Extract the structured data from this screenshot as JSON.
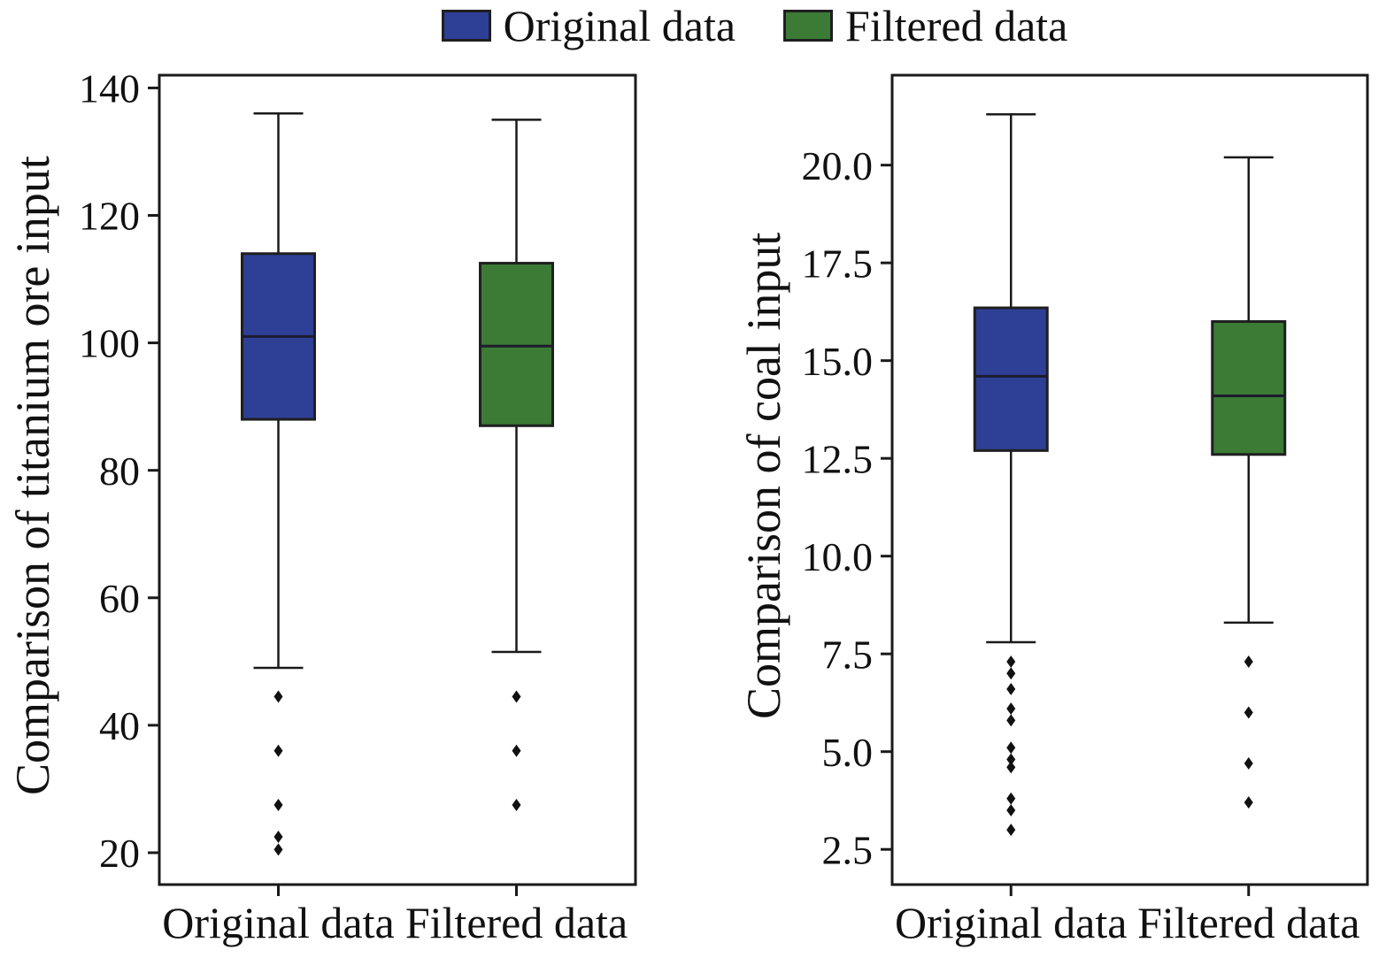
{
  "legend": {
    "items": [
      {
        "label": "Original data",
        "color": "#2e3f96"
      },
      {
        "label": "Filtered data",
        "color": "#3b7b35"
      }
    ],
    "position": "top-center"
  },
  "colors": {
    "box_edge": "#1f1f1f",
    "axis": "#1a1a1a",
    "whisker": "#1a1a1a",
    "median": "#1c1c2e",
    "outlier": "#111111",
    "background": "#ffffff"
  },
  "chart_data": [
    {
      "type": "box",
      "title": "",
      "ylabel": "Comparison of titanium ore input",
      "xlabel": "",
      "ylim": [
        15,
        142
      ],
      "grid": false,
      "yticks": [
        20,
        40,
        60,
        80,
        100,
        120,
        140
      ],
      "ytick_labels": [
        "20",
        "40",
        "60",
        "80",
        "100",
        "120",
        "140"
      ],
      "categories": [
        "Original data",
        "Filtered data"
      ],
      "series": [
        {
          "name": "Original data",
          "color": "#2e3f96",
          "whisker_low": 49,
          "q1": 88,
          "median": 101,
          "q3": 114,
          "whisker_high": 136,
          "outliers": [
            44.5,
            36,
            27.5,
            22.5,
            20.5
          ]
        },
        {
          "name": "Filtered data",
          "color": "#3b7b35",
          "whisker_low": 51.5,
          "q1": 87,
          "median": 99.5,
          "q3": 112.5,
          "whisker_high": 135,
          "outliers": [
            44.5,
            36,
            27.5
          ]
        }
      ]
    },
    {
      "type": "box",
      "title": "",
      "ylabel": "Comparison of coal input",
      "xlabel": "",
      "ylim": [
        1.6,
        22.3
      ],
      "grid": false,
      "yticks": [
        2.5,
        5.0,
        7.5,
        10.0,
        12.5,
        15.0,
        17.5,
        20.0
      ],
      "ytick_labels": [
        "2.5",
        "5.0",
        "7.5",
        "10.0",
        "12.5",
        "15.0",
        "17.5",
        "20.0"
      ],
      "categories": [
        "Original data",
        "Filtered data"
      ],
      "series": [
        {
          "name": "Original data",
          "color": "#2e3f96",
          "whisker_low": 7.8,
          "q1": 12.7,
          "median": 14.6,
          "q3": 16.35,
          "whisker_high": 21.3,
          "outliers": [
            7.3,
            7.0,
            6.6,
            6.1,
            5.8,
            5.1,
            4.8,
            4.6,
            3.8,
            3.5,
            3.0
          ]
        },
        {
          "name": "Filtered data",
          "color": "#3b7b35",
          "whisker_low": 8.3,
          "q1": 12.6,
          "median": 14.1,
          "q3": 16.0,
          "whisker_high": 20.2,
          "outliers": [
            7.3,
            6.0,
            4.7,
            3.7
          ]
        }
      ]
    }
  ]
}
